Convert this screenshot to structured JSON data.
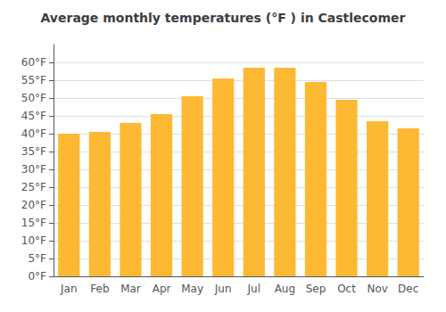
{
  "chart_data": {
    "type": "bar",
    "title": "Average monthly temperatures (°F ) in Castlecomer",
    "categories": [
      "Jan",
      "Feb",
      "Mar",
      "Apr",
      "May",
      "Jun",
      "Jul",
      "Aug",
      "Sep",
      "Oct",
      "Nov",
      "Dec"
    ],
    "values": [
      40,
      40.5,
      43,
      45.5,
      50.5,
      55.5,
      58.5,
      58.5,
      54.5,
      49.5,
      43.5,
      41.5
    ],
    "color": "#FDB933",
    "ylim": [
      0,
      65
    ],
    "yticks": [
      {
        "value": 0,
        "label": "0°F"
      },
      {
        "value": 5,
        "label": "5°F"
      },
      {
        "value": 10,
        "label": "10°F"
      },
      {
        "value": 15,
        "label": "15°F"
      },
      {
        "value": 20,
        "label": "20°F"
      },
      {
        "value": 25,
        "label": "25°F"
      },
      {
        "value": 30,
        "label": "30°F"
      },
      {
        "value": 35,
        "label": "35°F"
      },
      {
        "value": 40,
        "label": "40°F"
      },
      {
        "value": 45,
        "label": "45°F"
      },
      {
        "value": 50,
        "label": "50°F"
      },
      {
        "value": 55,
        "label": "55°F"
      },
      {
        "value": 60,
        "label": "60°F"
      }
    ],
    "grid": true
  }
}
